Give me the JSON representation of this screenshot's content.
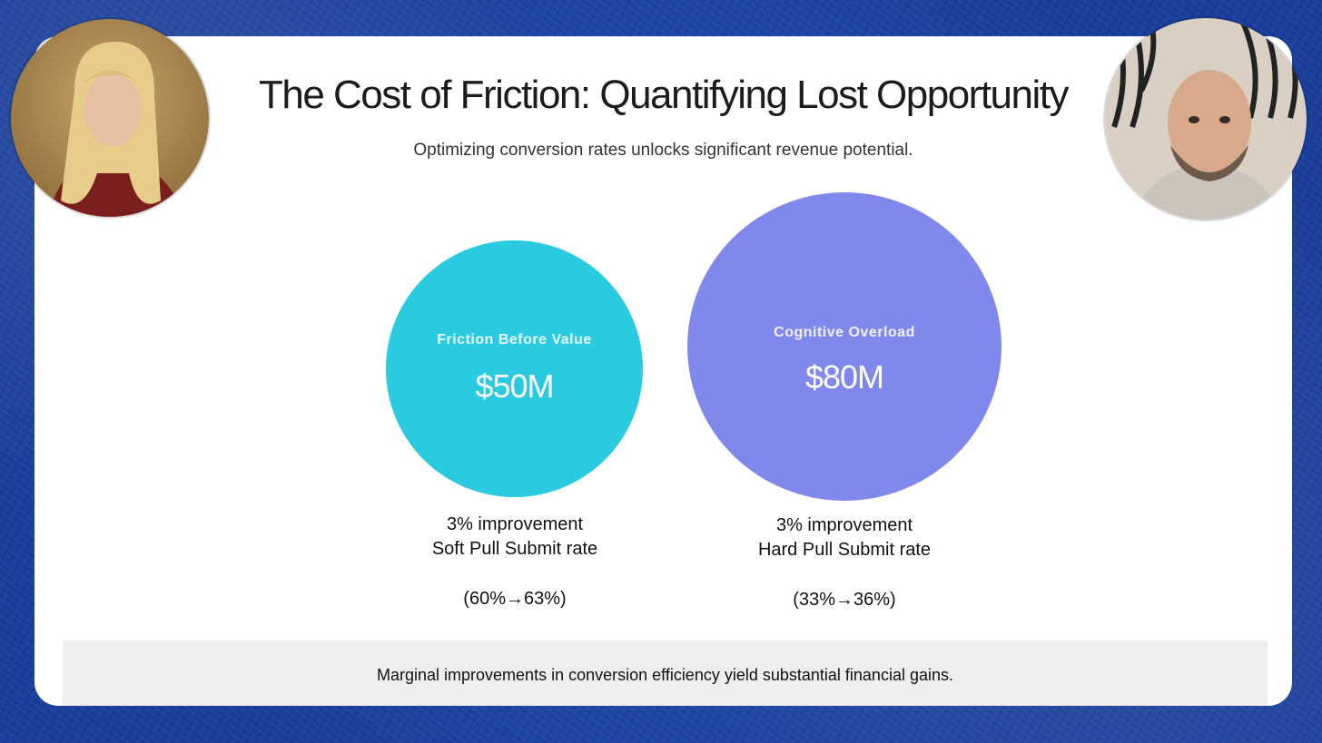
{
  "slide": {
    "title": "The Cost of Friction: Quantifying Lost Opportunity",
    "subtitle": "Optimizing conversion rates unlocks significant revenue potential.",
    "bubbles": [
      {
        "label": "Friction Before Value",
        "value": "$50M",
        "color": "#2acbe0",
        "caption_line1": "3% improvement",
        "caption_line2": "Soft Pull Submit rate",
        "caption_range": "(60%→63%)"
      },
      {
        "label": "Cognitive Overload",
        "value": "$80M",
        "color": "#8089eb",
        "caption_line1": "3% improvement",
        "caption_line2": "Hard Pull Submit rate",
        "caption_range": "(33%→36%)"
      }
    ],
    "footer": "Marginal improvements in conversion efficiency yield substantial financial gains."
  },
  "participants": [
    {
      "icon": "participant-video-female",
      "accent": "#b8893f"
    },
    {
      "icon": "participant-video-male",
      "accent": "#c8a98c"
    }
  ],
  "theme": {
    "background": "#1a3f9c",
    "slide_bg": "#ffffff",
    "footer_bg": "#eeeeee"
  }
}
